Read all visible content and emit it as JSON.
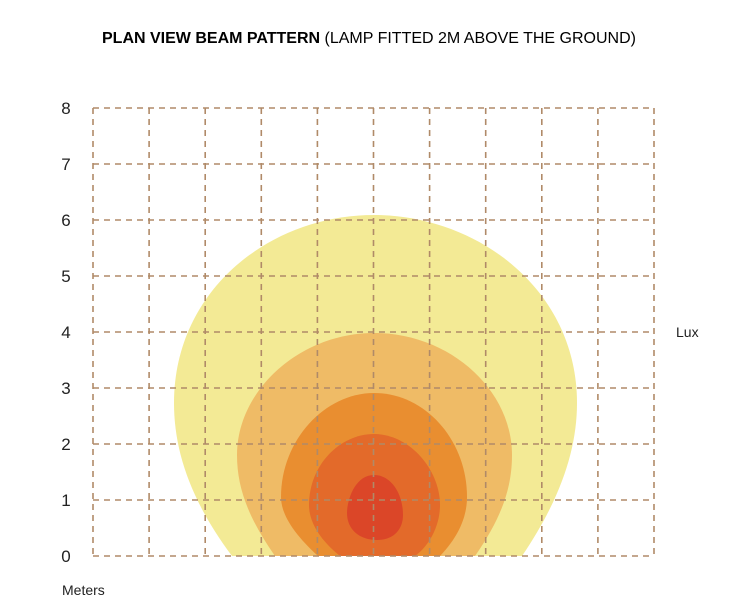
{
  "title": {
    "bold": "PLAN VIEW BEAM PATTERN",
    "normal": " (LAMP FITTED 2M ABOVE THE GROUND)"
  },
  "chart_data": {
    "type": "heatmap",
    "title": "PLAN VIEW BEAM PATTERN (LAMP FITTED 2M ABOVE THE GROUND)",
    "xlabel": "Meters",
    "legend_label": "Lux",
    "y_ticks": [
      "0",
      "1",
      "2",
      "3",
      "4",
      "5",
      "6",
      "7",
      "8"
    ],
    "ylim": [
      0,
      8
    ],
    "x_divisions": 10,
    "grid": true,
    "grid_color": "#b08a68",
    "contours": [
      {
        "level": 1,
        "reach_m": 6.1,
        "color": "#f3ea95"
      },
      {
        "level": 2,
        "reach_m": 4.0,
        "color": "#efbb66"
      },
      {
        "level": 3,
        "reach_m": 2.9,
        "color": "#e98e30"
      },
      {
        "level": 4,
        "reach_m": 2.2,
        "color": "#e36a2a"
      },
      {
        "level": 5,
        "reach_m": 1.45,
        "color": "#db4628"
      }
    ]
  }
}
